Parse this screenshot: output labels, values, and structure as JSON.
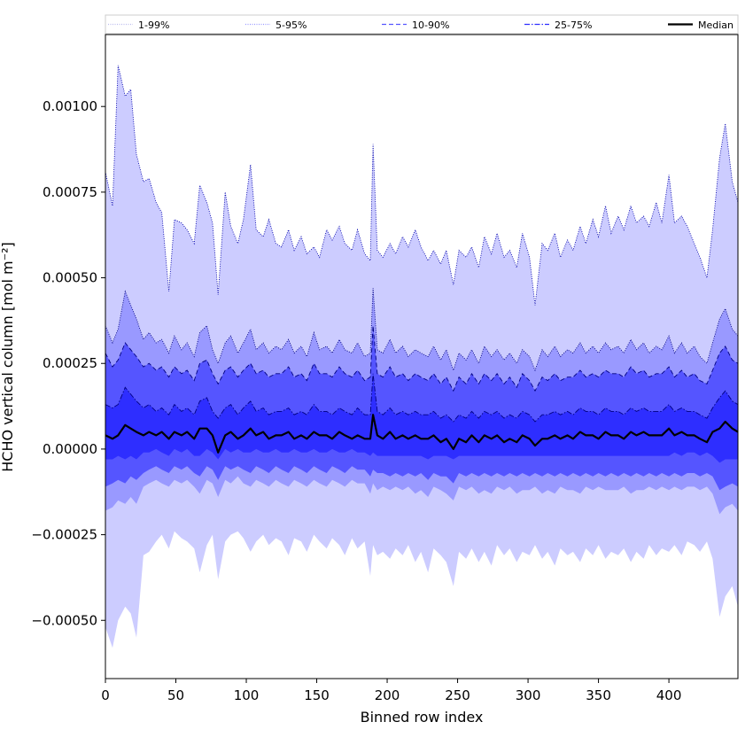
{
  "chart_data": {
    "type": "area",
    "xlabel": "Binned row index",
    "ylabel": "HCHO vertical column [mol m⁻²]",
    "xlim": [
      0,
      449
    ],
    "ylim": [
      -0.00067,
      0.00121
    ],
    "x_ticks": [
      0,
      50,
      100,
      150,
      200,
      250,
      300,
      350,
      400
    ],
    "x_tick_labels": [
      "0",
      "50",
      "100",
      "150",
      "200",
      "250",
      "300",
      "350",
      "400"
    ],
    "y_ticks": [
      -0.0005,
      -0.00025,
      0.0,
      0.00025,
      0.0005,
      0.00075,
      0.001
    ],
    "y_tick_labels": [
      "−0.00050",
      "−0.00025",
      "0.00000",
      "0.00025",
      "0.00050",
      "0.00075",
      "0.00100"
    ],
    "grid": false,
    "legend": {
      "placement": "top (above plot, single row)",
      "ncol": 5
    },
    "x": [
      0,
      5,
      9,
      14,
      18,
      22,
      27,
      31,
      36,
      40,
      45,
      49,
      54,
      58,
      63,
      67,
      72,
      76,
      80,
      85,
      89,
      94,
      98,
      103,
      107,
      112,
      116,
      121,
      125,
      130,
      134,
      139,
      143,
      148,
      152,
      157,
      161,
      166,
      170,
      175,
      179,
      184,
      188,
      190,
      193,
      197,
      202,
      206,
      211,
      215,
      220,
      224,
      229,
      233,
      238,
      242,
      247,
      251,
      256,
      260,
      265,
      269,
      274,
      278,
      283,
      287,
      292,
      296,
      301,
      305,
      310,
      314,
      319,
      323,
      328,
      332,
      337,
      341,
      346,
      350,
      355,
      359,
      364,
      368,
      373,
      377,
      382,
      386,
      391,
      395,
      400,
      404,
      409,
      413,
      418,
      422,
      427,
      431,
      436,
      440,
      445,
      449
    ],
    "series": [
      {
        "name": "1-99%",
        "band": "1-99%",
        "color": "#ccccff",
        "line": "dotted",
        "upper": [
          0.00081,
          0.00071,
          0.00112,
          0.00103,
          0.00105,
          0.00086,
          0.00078,
          0.00079,
          0.00072,
          0.00069,
          0.00046,
          0.00067,
          0.00066,
          0.00064,
          0.0006,
          0.00077,
          0.00072,
          0.00066,
          0.00045,
          0.00075,
          0.00065,
          0.0006,
          0.00067,
          0.00083,
          0.00064,
          0.00062,
          0.00067,
          0.0006,
          0.00059,
          0.00064,
          0.00058,
          0.00062,
          0.00057,
          0.00059,
          0.00056,
          0.00064,
          0.00061,
          0.00065,
          0.0006,
          0.00058,
          0.00064,
          0.00057,
          0.00055,
          0.00089,
          0.00058,
          0.00056,
          0.0006,
          0.00057,
          0.00062,
          0.00059,
          0.00064,
          0.00059,
          0.00055,
          0.00058,
          0.00054,
          0.00058,
          0.00048,
          0.00058,
          0.00056,
          0.00059,
          0.00053,
          0.00062,
          0.00057,
          0.00063,
          0.00056,
          0.00058,
          0.00053,
          0.00063,
          0.00056,
          0.00042,
          0.0006,
          0.00058,
          0.00063,
          0.00056,
          0.00061,
          0.00058,
          0.00065,
          0.0006,
          0.00067,
          0.00062,
          0.00071,
          0.00063,
          0.00068,
          0.00064,
          0.00071,
          0.00066,
          0.00068,
          0.00065,
          0.00072,
          0.00066,
          0.0008,
          0.00066,
          0.00068,
          0.00065,
          0.0006,
          0.00056,
          0.0005,
          0.00064,
          0.00085,
          0.00095,
          0.00078,
          0.00072
        ],
        "lower": [
          -0.00052,
          -0.00058,
          -0.0005,
          -0.00046,
          -0.00048,
          -0.00055,
          -0.00031,
          -0.0003,
          -0.00027,
          -0.00025,
          -0.00029,
          -0.00024,
          -0.00026,
          -0.00027,
          -0.00029,
          -0.00036,
          -0.00028,
          -0.00025,
          -0.00038,
          -0.00027,
          -0.00025,
          -0.00024,
          -0.00026,
          -0.0003,
          -0.00027,
          -0.00025,
          -0.00028,
          -0.00026,
          -0.00027,
          -0.00031,
          -0.00026,
          -0.00027,
          -0.0003,
          -0.00025,
          -0.00027,
          -0.00029,
          -0.00026,
          -0.00028,
          -0.00031,
          -0.00026,
          -0.00029,
          -0.00027,
          -0.00037,
          -0.00028,
          -0.00031,
          -0.0003,
          -0.00032,
          -0.00029,
          -0.00031,
          -0.00028,
          -0.00033,
          -0.0003,
          -0.00036,
          -0.00029,
          -0.00031,
          -0.00033,
          -0.0004,
          -0.0003,
          -0.00032,
          -0.00029,
          -0.00033,
          -0.0003,
          -0.00034,
          -0.00028,
          -0.00031,
          -0.00029,
          -0.00033,
          -0.0003,
          -0.00031,
          -0.00028,
          -0.00032,
          -0.0003,
          -0.00034,
          -0.00029,
          -0.00031,
          -0.0003,
          -0.00033,
          -0.00029,
          -0.00031,
          -0.00028,
          -0.00032,
          -0.0003,
          -0.00031,
          -0.00029,
          -0.00033,
          -0.0003,
          -0.00032,
          -0.00028,
          -0.00031,
          -0.00029,
          -0.0003,
          -0.00028,
          -0.00031,
          -0.00027,
          -0.00028,
          -0.0003,
          -0.00027,
          -0.00032,
          -0.00049,
          -0.00043,
          -0.0004,
          -0.00046
        ]
      },
      {
        "name": "5-95%",
        "band": "5-95%",
        "color": "#9999ff",
        "line": "dotted",
        "upper": [
          0.00036,
          0.00031,
          0.00035,
          0.00046,
          0.00042,
          0.00038,
          0.00032,
          0.00034,
          0.00031,
          0.00032,
          0.00028,
          0.00033,
          0.00029,
          0.00031,
          0.00027,
          0.00034,
          0.00036,
          0.00029,
          0.00025,
          0.00031,
          0.00033,
          0.00028,
          0.00031,
          0.00035,
          0.00029,
          0.00031,
          0.00028,
          0.0003,
          0.00029,
          0.00032,
          0.00028,
          0.0003,
          0.00027,
          0.00034,
          0.00029,
          0.0003,
          0.00028,
          0.00032,
          0.00029,
          0.00028,
          0.00031,
          0.00027,
          0.00028,
          0.00047,
          0.00029,
          0.00028,
          0.00032,
          0.00028,
          0.0003,
          0.00027,
          0.00029,
          0.00028,
          0.00027,
          0.0003,
          0.00026,
          0.00029,
          0.00023,
          0.00028,
          0.00026,
          0.00029,
          0.00025,
          0.0003,
          0.00027,
          0.00029,
          0.00026,
          0.00028,
          0.00025,
          0.00029,
          0.00027,
          0.00023,
          0.00029,
          0.00027,
          0.0003,
          0.00027,
          0.00029,
          0.00028,
          0.00031,
          0.00028,
          0.0003,
          0.00028,
          0.00031,
          0.00029,
          0.0003,
          0.00028,
          0.00032,
          0.00029,
          0.00031,
          0.00028,
          0.0003,
          0.00029,
          0.00033,
          0.00028,
          0.00031,
          0.00028,
          0.0003,
          0.00027,
          0.00025,
          0.00031,
          0.00038,
          0.00041,
          0.00035,
          0.00033
        ],
        "lower": [
          -0.00018,
          -0.00017,
          -0.00015,
          -0.00016,
          -0.00014,
          -0.00016,
          -0.00011,
          -0.0001,
          -9e-05,
          -0.0001,
          -0.00011,
          -9e-05,
          -0.0001,
          -9e-05,
          -0.00011,
          -0.00013,
          -9e-05,
          -0.0001,
          -0.00014,
          -9e-05,
          -0.0001,
          -8e-05,
          -0.0001,
          -0.00011,
          -9e-05,
          -0.0001,
          -0.00011,
          -9e-05,
          -0.0001,
          -0.00011,
          -9e-05,
          -0.0001,
          -0.00011,
          -9e-05,
          -0.0001,
          -0.00011,
          -9e-05,
          -0.0001,
          -0.00011,
          -9e-05,
          -0.0001,
          -0.0001,
          -0.00013,
          -0.0001,
          -0.00012,
          -0.00011,
          -0.00012,
          -0.00011,
          -0.00012,
          -0.00011,
          -0.00013,
          -0.00012,
          -0.00014,
          -0.00011,
          -0.00012,
          -0.00013,
          -0.00015,
          -0.00011,
          -0.00012,
          -0.00011,
          -0.00013,
          -0.00012,
          -0.00013,
          -0.00011,
          -0.00012,
          -0.00011,
          -0.00013,
          -0.00012,
          -0.00012,
          -0.00011,
          -0.00013,
          -0.00012,
          -0.00013,
          -0.00011,
          -0.00012,
          -0.00012,
          -0.00013,
          -0.00011,
          -0.00012,
          -0.00011,
          -0.00012,
          -0.00012,
          -0.00012,
          -0.00011,
          -0.00013,
          -0.00012,
          -0.00012,
          -0.00011,
          -0.00012,
          -0.00011,
          -0.00012,
          -0.00011,
          -0.00012,
          -0.00011,
          -0.00011,
          -0.00012,
          -0.00011,
          -0.00013,
          -0.00019,
          -0.00017,
          -0.00016,
          -0.00018
        ]
      },
      {
        "name": "10-90%",
        "band": "10-90%",
        "color": "#5555ff",
        "line": "dashed",
        "upper": [
          0.00028,
          0.00024,
          0.00026,
          0.00031,
          0.00029,
          0.00027,
          0.00024,
          0.00025,
          0.00023,
          0.00024,
          0.00021,
          0.00024,
          0.00022,
          0.00023,
          0.0002,
          0.00025,
          0.00026,
          0.00022,
          0.00019,
          0.00023,
          0.00024,
          0.00021,
          0.00023,
          0.00025,
          0.00022,
          0.00023,
          0.00021,
          0.00022,
          0.00022,
          0.00024,
          0.00021,
          0.00022,
          0.0002,
          0.00025,
          0.00022,
          0.00022,
          0.00021,
          0.00024,
          0.00022,
          0.00021,
          0.00023,
          0.0002,
          0.00021,
          0.00036,
          0.00022,
          0.00021,
          0.00024,
          0.00021,
          0.00022,
          0.0002,
          0.00022,
          0.00021,
          0.0002,
          0.00022,
          0.00019,
          0.00021,
          0.00017,
          0.00021,
          0.00019,
          0.00022,
          0.00019,
          0.00022,
          0.0002,
          0.00022,
          0.00019,
          0.00021,
          0.00018,
          0.00022,
          0.0002,
          0.00017,
          0.00021,
          0.0002,
          0.00022,
          0.0002,
          0.00021,
          0.00021,
          0.00023,
          0.00021,
          0.00022,
          0.00021,
          0.00023,
          0.00022,
          0.00022,
          0.00021,
          0.00024,
          0.00022,
          0.00023,
          0.00021,
          0.00022,
          0.00022,
          0.00024,
          0.00021,
          0.00023,
          0.00021,
          0.00022,
          0.0002,
          0.00019,
          0.00023,
          0.00028,
          0.0003,
          0.00026,
          0.00025
        ],
        "lower": [
          -0.00011,
          -0.0001,
          -9e-05,
          -0.0001,
          -8e-05,
          -9e-05,
          -7e-05,
          -6e-05,
          -5e-05,
          -6e-05,
          -7e-05,
          -5e-05,
          -6e-05,
          -5e-05,
          -7e-05,
          -8e-05,
          -5e-05,
          -6e-05,
          -9e-05,
          -5e-05,
          -6e-05,
          -5e-05,
          -6e-05,
          -7e-05,
          -5e-05,
          -6e-05,
          -7e-05,
          -5e-05,
          -6e-05,
          -7e-05,
          -5e-05,
          -6e-05,
          -7e-05,
          -5e-05,
          -6e-05,
          -7e-05,
          -5e-05,
          -6e-05,
          -7e-05,
          -5e-05,
          -6e-05,
          -6e-05,
          -8e-05,
          -6e-05,
          -7e-05,
          -7e-05,
          -8e-05,
          -7e-05,
          -8e-05,
          -7e-05,
          -8e-05,
          -7e-05,
          -9e-05,
          -7e-05,
          -8e-05,
          -8e-05,
          -0.0001,
          -7e-05,
          -8e-05,
          -7e-05,
          -8e-05,
          -7e-05,
          -8e-05,
          -7e-05,
          -8e-05,
          -7e-05,
          -8e-05,
          -7e-05,
          -8e-05,
          -7e-05,
          -8e-05,
          -7e-05,
          -8e-05,
          -7e-05,
          -8e-05,
          -7e-05,
          -8e-05,
          -7e-05,
          -8e-05,
          -7e-05,
          -8e-05,
          -7e-05,
          -8e-05,
          -7e-05,
          -8e-05,
          -7e-05,
          -8e-05,
          -7e-05,
          -8e-05,
          -7e-05,
          -8e-05,
          -7e-05,
          -8e-05,
          -7e-05,
          -7e-05,
          -8e-05,
          -7e-05,
          -8e-05,
          -0.00012,
          -0.00011,
          -0.0001,
          -0.00011
        ]
      },
      {
        "name": "25-75%",
        "band": "25-75%",
        "color": "#2e2eff",
        "line": "dashdot",
        "upper": [
          0.00013,
          0.00012,
          0.00013,
          0.00018,
          0.00016,
          0.00014,
          0.00012,
          0.00013,
          0.00011,
          0.00012,
          0.0001,
          0.00013,
          0.00011,
          0.00012,
          0.0001,
          0.00014,
          0.00015,
          0.00011,
          9e-05,
          0.00012,
          0.00013,
          0.0001,
          0.00012,
          0.00014,
          0.00011,
          0.00012,
          0.0001,
          0.00011,
          0.00011,
          0.00012,
          0.0001,
          0.00011,
          0.0001,
          0.00013,
          0.00011,
          0.00011,
          0.0001,
          0.00012,
          0.00011,
          0.0001,
          0.00012,
          0.0001,
          0.0001,
          0.00022,
          0.00011,
          0.0001,
          0.00012,
          0.0001,
          0.00011,
          0.0001,
          0.00011,
          0.0001,
          0.0001,
          0.00011,
          9e-05,
          0.0001,
          8e-05,
          0.0001,
          9e-05,
          0.00011,
          9e-05,
          0.00011,
          0.0001,
          0.00011,
          9e-05,
          0.0001,
          9e-05,
          0.00011,
          0.0001,
          8e-05,
          0.0001,
          0.0001,
          0.00011,
          0.0001,
          0.00011,
          0.0001,
          0.00012,
          0.00011,
          0.00011,
          0.0001,
          0.00012,
          0.00011,
          0.00011,
          0.0001,
          0.00012,
          0.00011,
          0.00012,
          0.00011,
          0.00011,
          0.00011,
          0.00013,
          0.00011,
          0.00012,
          0.00011,
          0.00011,
          0.0001,
          9e-05,
          0.00012,
          0.00015,
          0.00017,
          0.00014,
          0.00013
        ],
        "lower": [
          -3e-05,
          -3e-05,
          -2e-05,
          -3e-05,
          -2e-05,
          -3e-05,
          -1e-05,
          -1e-05,
          0.0,
          -1e-05,
          -2e-05,
          0.0,
          -1e-05,
          0.0,
          -2e-05,
          -2e-05,
          0.0,
          -1e-05,
          -3e-05,
          0.0,
          -1e-05,
          0.0,
          -1e-05,
          -1e-05,
          0.0,
          -1e-05,
          -1e-05,
          0.0,
          -1e-05,
          -1e-05,
          0.0,
          -1e-05,
          -1e-05,
          0.0,
          -1e-05,
          -1e-05,
          0.0,
          -1e-05,
          -1e-05,
          0.0,
          -1e-05,
          -1e-05,
          -2e-05,
          -1e-05,
          -2e-05,
          -2e-05,
          -2e-05,
          -2e-05,
          -2e-05,
          -2e-05,
          -2e-05,
          -2e-05,
          -3e-05,
          -2e-05,
          -2e-05,
          -2e-05,
          -3e-05,
          -2e-05,
          -2e-05,
          -2e-05,
          -2e-05,
          -2e-05,
          -2e-05,
          -2e-05,
          -2e-05,
          -2e-05,
          -2e-05,
          -2e-05,
          -2e-05,
          -2e-05,
          -2e-05,
          -2e-05,
          -2e-05,
          -2e-05,
          -2e-05,
          -2e-05,
          -2e-05,
          -2e-05,
          -2e-05,
          -2e-05,
          -2e-05,
          -2e-05,
          -2e-05,
          -2e-05,
          -2e-05,
          -2e-05,
          -2e-05,
          -2e-05,
          -2e-05,
          -2e-05,
          -2e-05,
          -1e-05,
          -2e-05,
          -1e-05,
          -1e-05,
          -2e-05,
          -1e-05,
          -2e-05,
          -4e-05,
          -3e-05,
          -3e-05,
          -3e-05
        ]
      },
      {
        "name": "Median",
        "color": "#000000",
        "line": "solid",
        "values": [
          4e-05,
          3e-05,
          4e-05,
          7e-05,
          6e-05,
          5e-05,
          4e-05,
          5e-05,
          4e-05,
          5e-05,
          3e-05,
          5e-05,
          4e-05,
          5e-05,
          3e-05,
          6e-05,
          6e-05,
          4e-05,
          -1e-05,
          4e-05,
          5e-05,
          3e-05,
          4e-05,
          6e-05,
          4e-05,
          5e-05,
          3e-05,
          4e-05,
          4e-05,
          5e-05,
          3e-05,
          4e-05,
          3e-05,
          5e-05,
          4e-05,
          4e-05,
          3e-05,
          5e-05,
          4e-05,
          3e-05,
          4e-05,
          3e-05,
          3e-05,
          0.0001,
          4e-05,
          3e-05,
          5e-05,
          3e-05,
          4e-05,
          3e-05,
          4e-05,
          3e-05,
          3e-05,
          4e-05,
          2e-05,
          3e-05,
          0.0,
          3e-05,
          2e-05,
          4e-05,
          2e-05,
          4e-05,
          3e-05,
          4e-05,
          2e-05,
          3e-05,
          2e-05,
          4e-05,
          3e-05,
          1e-05,
          3e-05,
          3e-05,
          4e-05,
          3e-05,
          4e-05,
          3e-05,
          5e-05,
          4e-05,
          4e-05,
          3e-05,
          5e-05,
          4e-05,
          4e-05,
          3e-05,
          5e-05,
          4e-05,
          5e-05,
          4e-05,
          4e-05,
          4e-05,
          6e-05,
          4e-05,
          5e-05,
          4e-05,
          4e-05,
          3e-05,
          2e-05,
          5e-05,
          6e-05,
          8e-05,
          6e-05,
          5e-05
        ]
      }
    ]
  }
}
